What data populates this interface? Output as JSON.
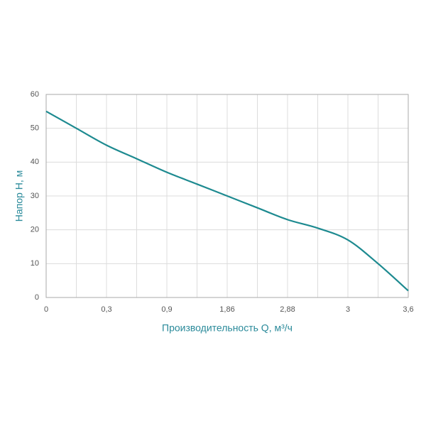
{
  "chart_data": {
    "type": "line",
    "x_label": "Производительность Q, м³/ч",
    "y_label": "Напор H, м",
    "categories": [
      "0",
      null,
      "0,3",
      null,
      "0,9",
      null,
      "1,86",
      null,
      "2,88",
      null,
      "3",
      null,
      "3,6"
    ],
    "series": [
      {
        "name": null,
        "color": "#1d8a90",
        "values": [
          55,
          50,
          45,
          41,
          37,
          33.5,
          30,
          26.5,
          23,
          20.5,
          17,
          10,
          2
        ]
      }
    ],
    "ylim": [
      0,
      60
    ],
    "yticks": [
      0,
      10,
      20,
      30,
      40,
      50,
      60
    ],
    "grid": true
  }
}
